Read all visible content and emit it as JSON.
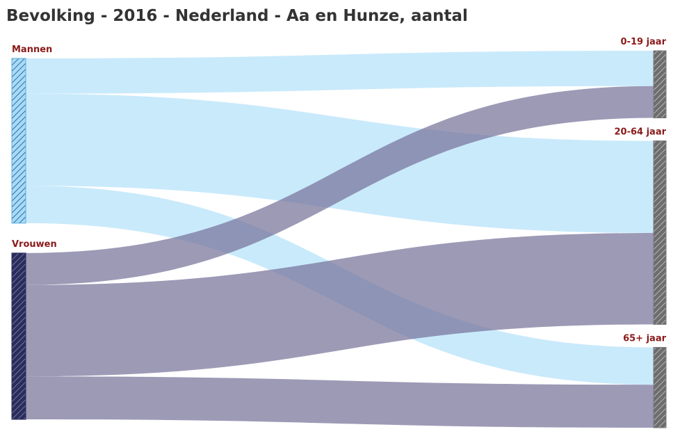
{
  "chart_data": {
    "type": "sankey",
    "title": "Bevolking - 2016 - Nederland - Aa en Hunze, aantal",
    "nodes": [
      {
        "name": "Mannen",
        "color": "#5aaee0",
        "link_color": "#c6e9fb"
      },
      {
        "name": "Vrouwen",
        "color": "#2a2c5c",
        "link_color": "#77739a"
      },
      {
        "name": "0-19 jaar",
        "color": "#7a7a7a"
      },
      {
        "name": "20-64 jaar",
        "color": "#7a7a7a"
      },
      {
        "name": "65+ jaar",
        "color": "#7a7a7a"
      }
    ],
    "links": [
      {
        "source": 0,
        "target": 2,
        "value": 2700
      },
      {
        "source": 0,
        "target": 3,
        "value": 7050
      },
      {
        "source": 0,
        "target": 4,
        "value": 2860
      },
      {
        "source": 1,
        "target": 2,
        "value": 2440
      },
      {
        "source": 1,
        "target": 3,
        "value": 7000
      },
      {
        "source": 1,
        "target": 4,
        "value": 3290
      }
    ]
  }
}
